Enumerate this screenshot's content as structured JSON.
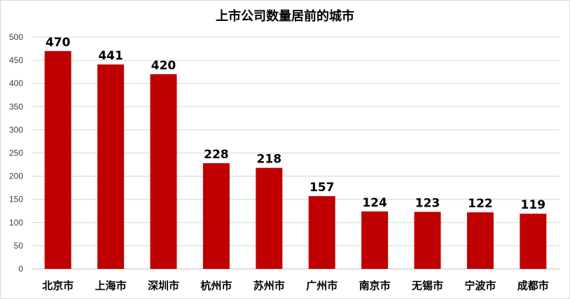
{
  "chart_data": {
    "type": "bar",
    "title": "上市公司数量居前的城市",
    "categories": [
      "北京市",
      "上海市",
      "深圳市",
      "杭州市",
      "苏州市",
      "广州市",
      "南京市",
      "无锡市",
      "宁波市",
      "成都市"
    ],
    "values": [
      470,
      441,
      420,
      228,
      218,
      157,
      124,
      123,
      122,
      119
    ],
    "ylim": [
      0,
      500
    ],
    "yticks": [
      "0",
      "50",
      "100",
      "150",
      "200",
      "250",
      "300",
      "350",
      "400",
      "450",
      "500"
    ],
    "grid": true,
    "legend": "none",
    "colors": {
      "bar": "#c00000",
      "grid": "#c6e0b4",
      "axis": "#bfbfbf"
    }
  }
}
